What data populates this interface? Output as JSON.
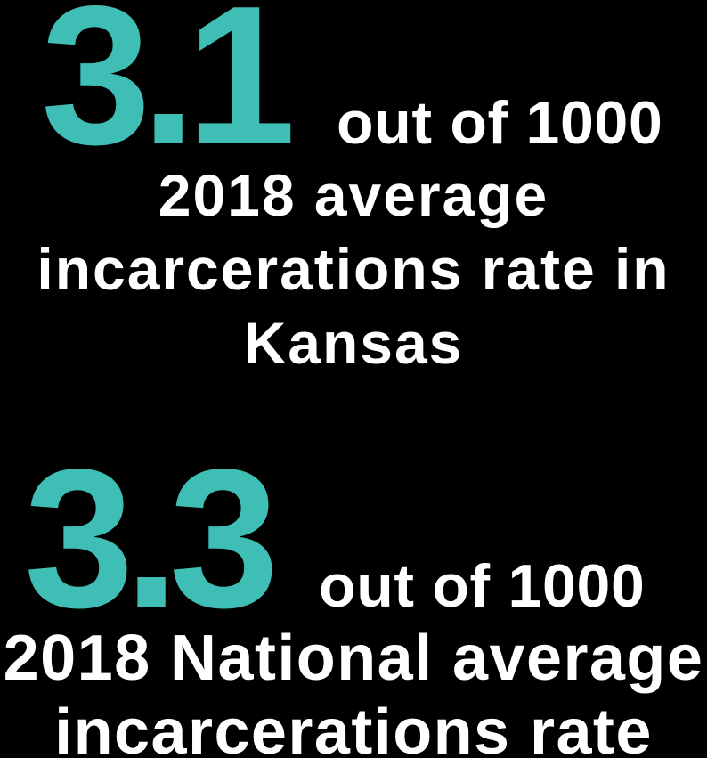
{
  "colors": {
    "background": "#000000",
    "accent": "#3EBEB5",
    "text": "#FFFFFF"
  },
  "stats": [
    {
      "value": "3.1",
      "unit": "out of 1000",
      "caption_lines": [
        "2018 average",
        "incarcerations rate in",
        "Kansas"
      ]
    },
    {
      "value": "3.3",
      "unit": "out of 1000",
      "caption_lines": [
        "2018 National average",
        "incarcerations rate"
      ]
    }
  ],
  "chart_data": {
    "type": "table",
    "categories": [
      "2018 average incarcerations rate in Kansas",
      "2018 National average incarcerations rate"
    ],
    "values": [
      3.1,
      3.3
    ],
    "unit": "out of 1000"
  }
}
